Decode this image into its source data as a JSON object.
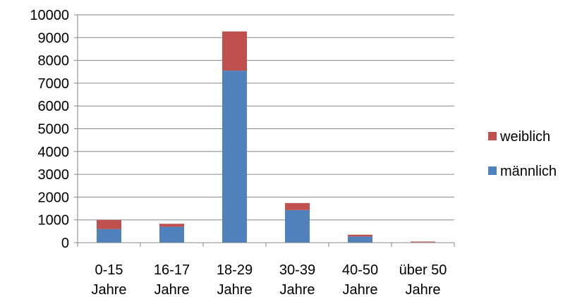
{
  "chart_data": {
    "type": "bar",
    "stacked": true,
    "title": "",
    "xlabel": "",
    "ylabel": "",
    "categories": [
      [
        "0-15",
        "Jahre"
      ],
      [
        "16-17",
        "Jahre"
      ],
      [
        "18-29",
        "Jahre"
      ],
      [
        "30-39",
        "Jahre"
      ],
      [
        "40-50",
        "Jahre"
      ],
      [
        "über 50",
        "Jahre"
      ]
    ],
    "series": [
      {
        "name": "männlich",
        "color": "#4F81BD",
        "values": [
          600,
          700,
          7550,
          1430,
          270,
          20
        ]
      },
      {
        "name": "weiblich",
        "color": "#C0504D",
        "values": [
          400,
          130,
          1720,
          310,
          80,
          30
        ]
      }
    ],
    "ylim": [
      0,
      10000
    ],
    "yticks": [
      0,
      1000,
      2000,
      3000,
      4000,
      5000,
      6000,
      7000,
      8000,
      9000,
      10000
    ],
    "grid": true,
    "legend": {
      "position": "right",
      "order": [
        "weiblich",
        "männlich"
      ]
    },
    "colors": {
      "grid": "#868686",
      "axis": "#868686"
    }
  }
}
